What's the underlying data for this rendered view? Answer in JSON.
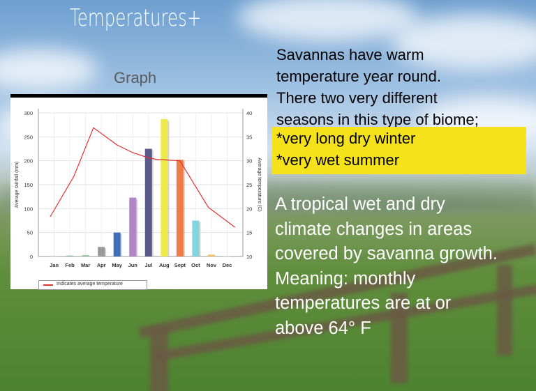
{
  "slide": {
    "title": "Temperatures+",
    "graph_label": "Graph",
    "intro_lines": [
      "Savannas have warm",
      "temperature year round.",
      "There two very different",
      "seasons in this type of biome;"
    ],
    "highlight_lines": [
      "*very long dry winter",
      "*very wet summer"
    ],
    "description_lines": [
      "A tropical wet and dry",
      "climate changes in areas",
      "covered by savanna growth.",
      "Meaning: monthly",
      "temperatures are at or",
      "above 64° F"
    ],
    "highlight_color": "#f6e21a"
  },
  "chart_data": {
    "type": "bar",
    "categories": [
      "Jan",
      "Feb",
      "Mar",
      "Apr",
      "May",
      "Jun",
      "Jul",
      "Aug",
      "Sept",
      "Oct",
      "Nov",
      "Dec"
    ],
    "ylabel": "Average rainfall (mm)",
    "y2label": "Average temperature (C)",
    "ylim": [
      0,
      300
    ],
    "y2lim": [
      10,
      40
    ],
    "yticks": [
      0,
      50,
      100,
      150,
      200,
      250,
      300
    ],
    "y2ticks": [
      10,
      15,
      20,
      25,
      30,
      35,
      40
    ],
    "grid": true,
    "series": [
      {
        "type": "bar",
        "values": [
          1,
          2,
          3,
          20,
          50,
          123,
          225,
          287,
          202,
          75,
          4,
          0
        ],
        "colors": [
          "#c7c7c7",
          "#9bbfa2",
          "#9ec9a4",
          "#9a9a9a",
          "#3f6fb5",
          "#b084c6",
          "#5a5a88",
          "#efe94a",
          "#ef7c47",
          "#86d3e0",
          "#f4c56f",
          "#dddddd"
        ]
      },
      {
        "type": "line",
        "name": "Indicates average temperature",
        "values": [
          18.3,
          26.7,
          36.9,
          33.3,
          31.7,
          30.6,
          30.3,
          30.0,
          20.3,
          16.1
        ],
        "x": [
          0.75,
          2.25,
          3.5,
          5,
          6,
          7,
          7.5,
          9,
          10.8,
          12.5
        ],
        "color": "#e0312f"
      }
    ],
    "legend": {
      "label": "Indicates average temperature",
      "position": "bottom-left"
    }
  }
}
